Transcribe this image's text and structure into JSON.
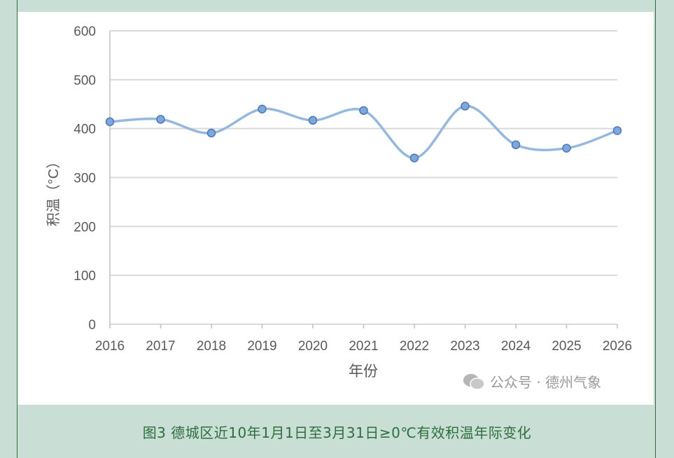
{
  "chart_data": {
    "type": "line",
    "smooth": true,
    "x": [
      "2016",
      "2017",
      "2018",
      "2019",
      "2020",
      "2021",
      "2022",
      "2023",
      "2024",
      "2025",
      "2026"
    ],
    "values": [
      414,
      419,
      391,
      440,
      417,
      437,
      340,
      446,
      367,
      360,
      396
    ],
    "xlabel": "年份",
    "ylabel": "积温（°C）",
    "ylim": [
      0,
      600
    ],
    "yticks": [
      "0",
      "100",
      "200",
      "300",
      "400",
      "500",
      "600"
    ],
    "grid": true,
    "colors": {
      "line": "#95b8df",
      "marker": "#7ea7db",
      "marker_edge": "#4a77b8"
    }
  },
  "caption": "图3 德城区近10年1月1日至3月31日≥0℃有效积温年际变化",
  "watermark": "公众号 · 德州气象"
}
